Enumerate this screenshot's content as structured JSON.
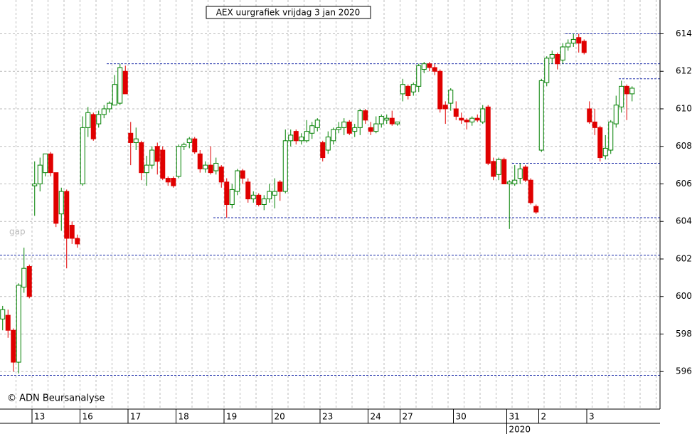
{
  "chart_data": {
    "type": "candlestick",
    "title": "AEX uurgrafiek vrijdag 3 jan 2020",
    "annotation": "gap",
    "source": "© ADN Beursanalyse",
    "year_label": "2020",
    "ylim": [
      594,
      615.8
    ],
    "yticks": [
      596,
      598,
      600,
      602,
      604,
      606,
      608,
      610,
      612,
      614
    ],
    "grid": true,
    "up_color": "#008000",
    "down_color": "#e00000",
    "levels": [
      614,
      612.4,
      611.6,
      607.1,
      604.2,
      602.2,
      595.8
    ],
    "days": [
      {
        "label": null,
        "open": [
          598.8,
          599.0,
          598.2,
          596.5,
          600.5,
          601.6
        ],
        "high": [
          599.5,
          599.3,
          598.3,
          600.7,
          602.6,
          601.7
        ],
        "low": [
          598.2,
          597.8,
          596.0,
          595.9,
          600.2,
          599.9
        ],
        "close": [
          599.3,
          598.2,
          596.5,
          600.6,
          601.5,
          600.0
        ]
      },
      {
        "label": "13",
        "open": [
          605.9,
          606.0,
          606.6,
          607.6,
          606.6,
          604.4,
          605.6,
          603.8,
          603.1
        ],
        "high": [
          607.2,
          607.4,
          607.6,
          607.7,
          606.6,
          605.8,
          605.7,
          604.0,
          603.3
        ],
        "low": [
          604.3,
          605.6,
          606.4,
          606.4,
          603.7,
          603.5,
          601.5,
          602.8,
          602.6
        ],
        "close": [
          606.0,
          607.0,
          607.6,
          606.6,
          603.9,
          605.6,
          603.1,
          603.1,
          602.8
        ]
      },
      {
        "label": "16",
        "open": [
          606.0,
          609.0,
          609.7,
          609.2,
          609.7,
          610.0,
          610.2,
          610.3,
          612.0
        ],
        "high": [
          609.6,
          610.1,
          609.8,
          609.9,
          610.2,
          610.4,
          611.8,
          612.4,
          612.3
        ],
        "low": [
          605.9,
          608.5,
          608.3,
          609.0,
          609.5,
          609.8,
          610.2,
          610.2,
          610.8
        ],
        "close": [
          609.0,
          609.8,
          608.4,
          609.7,
          610.0,
          610.3,
          611.3,
          612.2,
          610.8
        ]
      },
      {
        "label": "17",
        "open": [
          608.7,
          608.2,
          608.2,
          606.6,
          607.0,
          608.0,
          607.8,
          606.3,
          606.3
        ],
        "high": [
          609.3,
          609.0,
          608.3,
          607.5,
          608.0,
          608.2,
          608.0,
          606.4,
          606.4
        ],
        "low": [
          607.0,
          607.8,
          606.2,
          605.9,
          606.8,
          606.5,
          606.2,
          605.9,
          605.8
        ],
        "close": [
          608.2,
          608.4,
          606.6,
          607.0,
          607.8,
          607.2,
          606.3,
          606.1,
          605.9
        ]
      },
      {
        "label": "18",
        "open": [
          606.4,
          608.0,
          608.2,
          608.4,
          607.6,
          606.8,
          607.0,
          606.7,
          606.9
        ],
        "high": [
          608.1,
          608.2,
          608.5,
          608.5,
          607.8,
          607.2,
          608.0,
          607.4,
          607.0
        ],
        "low": [
          606.3,
          607.8,
          607.9,
          607.6,
          606.6,
          606.6,
          606.5,
          606.5,
          605.8
        ],
        "close": [
          608.0,
          608.1,
          608.4,
          607.7,
          606.8,
          607.0,
          606.6,
          607.1,
          606.1
        ]
      },
      {
        "label": "19",
        "open": [
          606.1,
          604.9,
          605.6,
          606.7,
          606.1,
          605.2,
          605.4,
          604.9,
          605.2
        ],
        "high": [
          606.3,
          606.0,
          606.8,
          606.8,
          606.3,
          605.6,
          605.5,
          605.4,
          606.0
        ],
        "low": [
          604.2,
          604.7,
          605.4,
          606.0,
          605.0,
          605.0,
          604.8,
          604.6,
          605.0
        ],
        "close": [
          604.9,
          605.7,
          606.7,
          606.3,
          605.2,
          605.4,
          604.9,
          605.2,
          605.6
        ]
      },
      {
        "label": "20",
        "open": [
          605.4,
          606.1,
          605.6,
          608.3,
          608.8,
          608.3,
          608.3,
          608.7,
          609.0
        ],
        "high": [
          606.3,
          606.2,
          608.9,
          608.9,
          608.9,
          608.7,
          609.4,
          609.3,
          609.5
        ],
        "low": [
          604.7,
          605.1,
          605.5,
          608.0,
          608.1,
          608.1,
          608.2,
          608.4,
          608.8
        ],
        "close": [
          605.6,
          605.6,
          608.3,
          608.6,
          608.3,
          608.5,
          608.8,
          609.1,
          609.4
        ]
      },
      {
        "label": "23",
        "open": [
          608.2,
          607.8,
          608.3,
          608.9,
          609.0,
          609.3,
          608.8,
          609.0,
          609.9
        ],
        "high": [
          608.3,
          608.8,
          609.0,
          609.3,
          609.5,
          609.4,
          609.2,
          610.0,
          610.0
        ],
        "low": [
          607.2,
          607.6,
          608.1,
          608.7,
          608.6,
          608.6,
          608.5,
          608.6,
          609.2
        ],
        "close": [
          607.4,
          608.5,
          608.9,
          609.0,
          609.3,
          608.7,
          609.0,
          609.9,
          609.4
        ]
      },
      {
        "label": "24",
        "open": [
          609.0,
          608.8,
          609.2,
          609.4,
          609.5,
          609.2
        ],
        "high": [
          609.3,
          609.6,
          609.7,
          609.7,
          609.9,
          609.3
        ],
        "low": [
          608.6,
          608.7,
          609.0,
          609.2,
          609.1,
          609.1
        ],
        "close": [
          608.8,
          609.2,
          609.6,
          609.5,
          609.2,
          609.3
        ]
      },
      {
        "label": "27",
        "open": [
          610.8,
          611.2,
          610.9,
          611.2,
          612.1,
          612.4,
          612.2,
          612.0,
          610.2,
          610.3
        ],
        "high": [
          611.6,
          611.3,
          611.4,
          612.4,
          612.5,
          612.5,
          612.4,
          612.1,
          610.4,
          611.1
        ],
        "low": [
          610.4,
          610.5,
          610.7,
          610.9,
          611.9,
          612.0,
          611.8,
          609.8,
          609.2,
          609.9
        ],
        "close": [
          611.3,
          610.7,
          611.3,
          612.3,
          612.4,
          612.2,
          612.0,
          610.0,
          610.0,
          611.0
        ]
      },
      {
        "label": "30",
        "open": [
          610.0,
          609.5,
          609.4,
          609.3,
          609.5,
          609.3,
          610.1,
          607.2,
          606.5,
          607.3
        ],
        "high": [
          610.4,
          609.8,
          609.5,
          609.6,
          609.7,
          610.2,
          610.2,
          607.4,
          607.4,
          607.4
        ],
        "low": [
          609.4,
          609.2,
          608.9,
          609.1,
          609.3,
          609.2,
          607.0,
          606.2,
          606.2,
          606.0
        ],
        "close": [
          609.6,
          609.4,
          609.3,
          609.5,
          609.4,
          610.0,
          607.1,
          606.4,
          607.3,
          606.0
        ]
      },
      {
        "label": "31",
        "open": [
          606.0,
          606.0,
          606.3,
          606.9,
          606.2,
          604.8
        ],
        "high": [
          606.2,
          607.0,
          607.1,
          607.0,
          606.3,
          604.9
        ],
        "low": [
          603.6,
          605.9,
          606.0,
          606.1,
          604.9,
          604.4
        ],
        "close": [
          606.1,
          606.2,
          606.8,
          606.2,
          605.0,
          604.5
        ]
      },
      {
        "label": "2",
        "open": [
          607.8,
          611.4,
          612.7,
          612.9,
          612.6,
          613.3,
          613.5,
          613.8,
          613.6
        ],
        "high": [
          611.6,
          612.8,
          613.1,
          613.0,
          613.5,
          613.7,
          614.0,
          614.0,
          613.7
        ],
        "low": [
          607.7,
          611.2,
          612.4,
          612.1,
          612.4,
          613.1,
          613.3,
          613.0,
          612.9
        ],
        "close": [
          611.5,
          612.7,
          612.9,
          612.4,
          613.3,
          613.5,
          613.7,
          613.5,
          613.0
        ]
      },
      {
        "label": "3",
        "open": [
          610.0,
          609.3,
          609.0,
          607.5,
          607.8,
          609.2,
          610.1,
          611.2,
          610.8
        ],
        "high": [
          610.4,
          610.0,
          609.1,
          608.6,
          609.4,
          610.7,
          611.5,
          611.3,
          611.2
        ],
        "low": [
          609.2,
          608.6,
          607.2,
          607.3,
          607.6,
          609.0,
          609.8,
          609.4,
          610.4
        ],
        "close": [
          609.3,
          609.0,
          607.4,
          607.9,
          609.3,
          610.2,
          611.2,
          610.8,
          611.1
        ]
      }
    ]
  }
}
